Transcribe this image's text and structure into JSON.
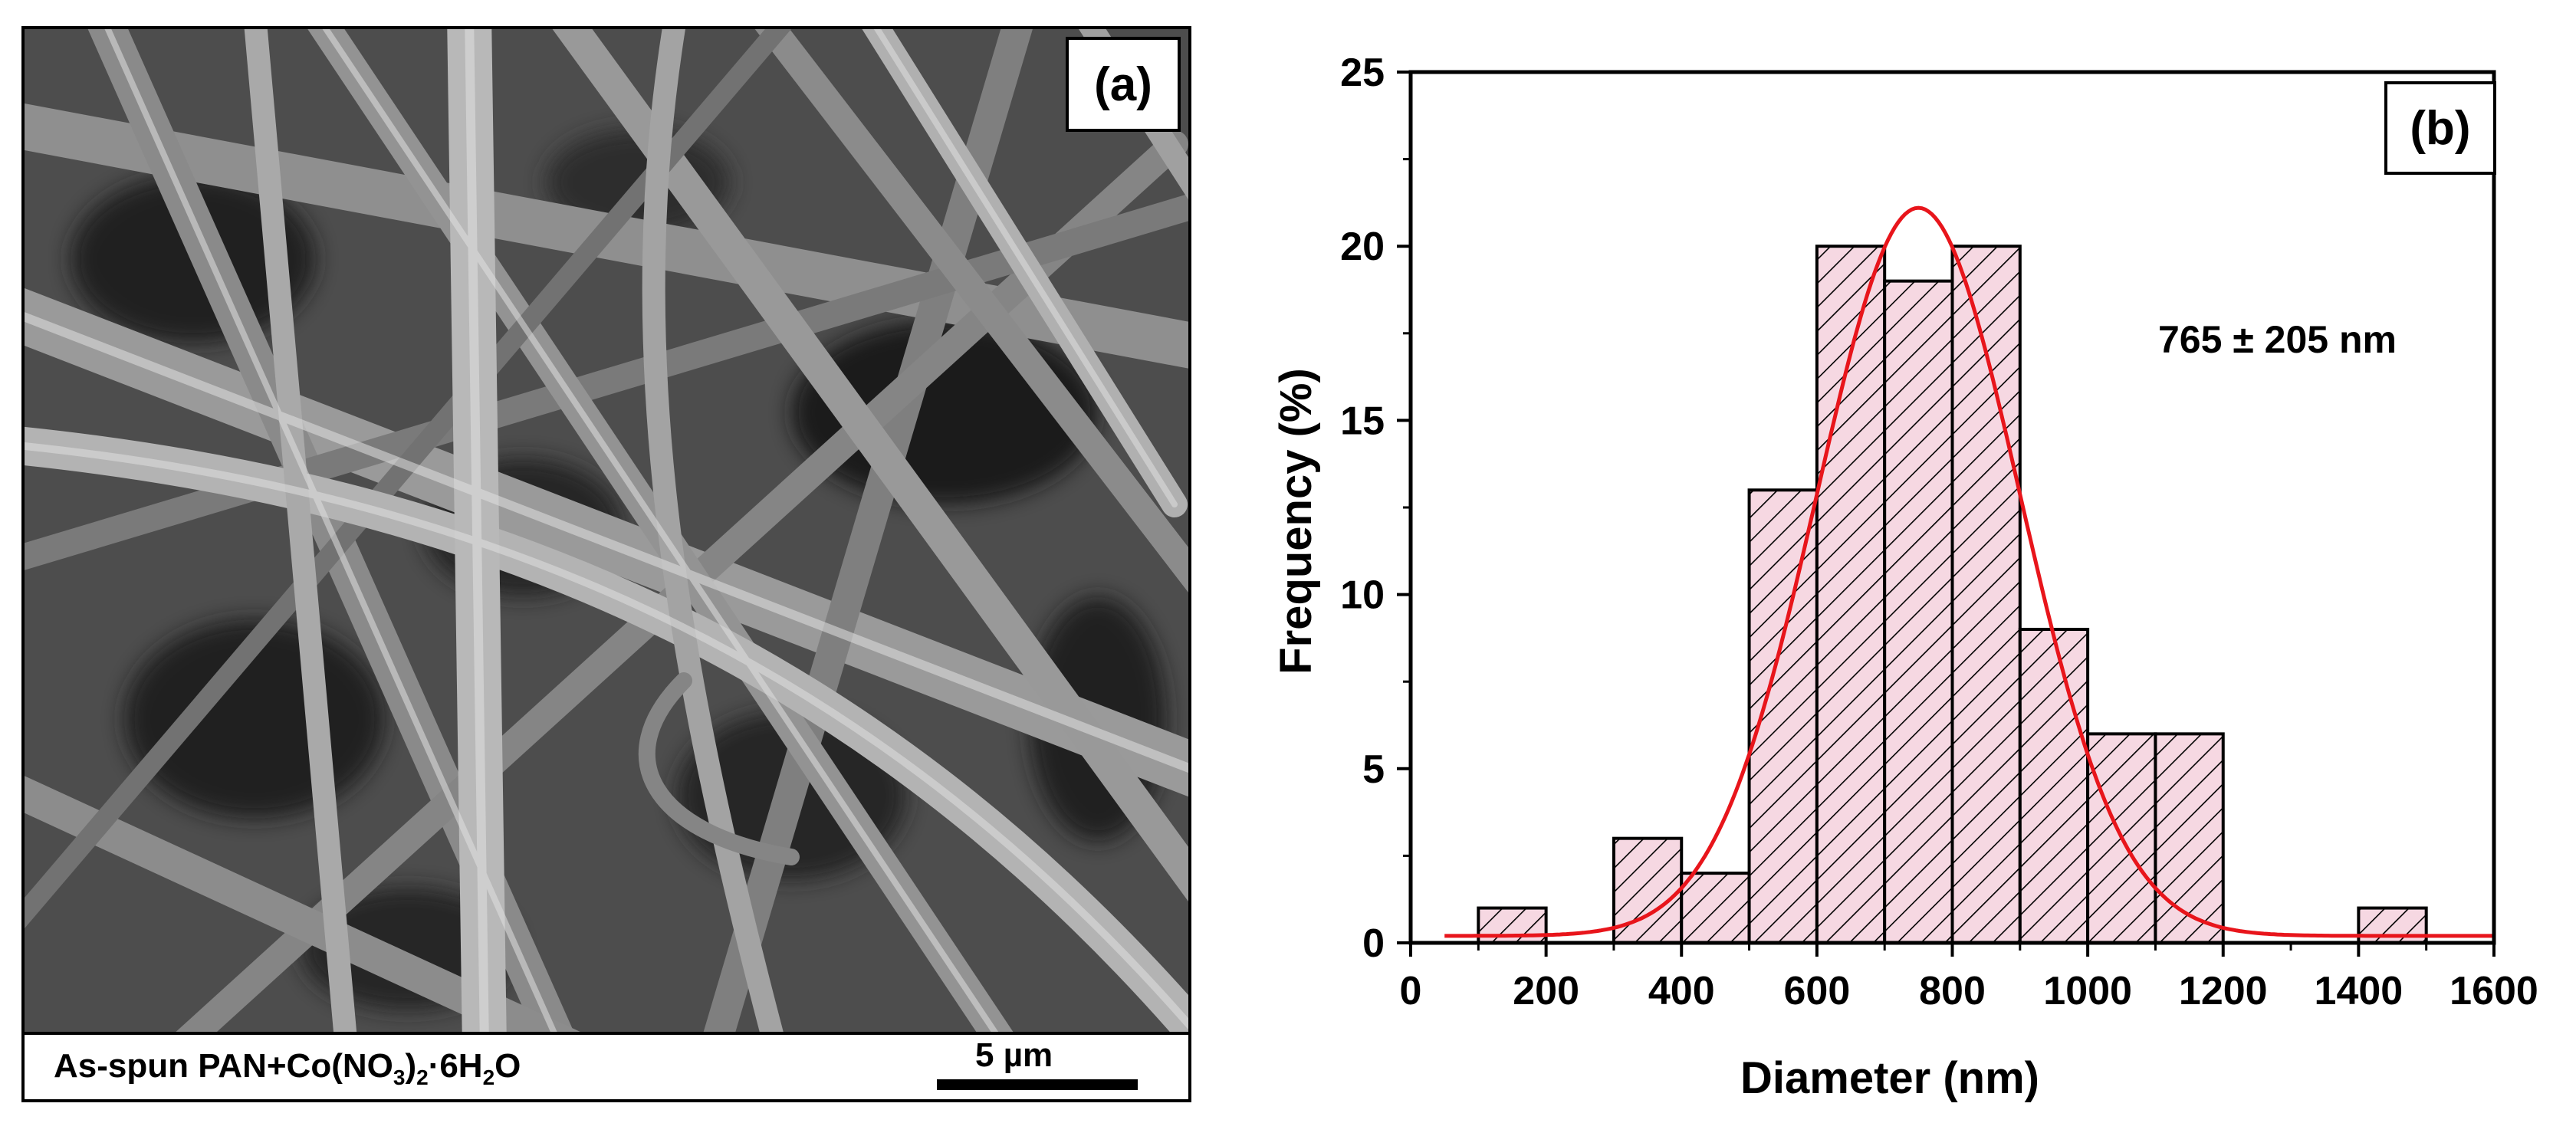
{
  "panel_a": {
    "tag": "(a)",
    "caption_prefix": "As-spun PAN+Co(NO",
    "caption_sub1": "3",
    "caption_mid": ")",
    "caption_sub2": "2",
    "caption_mid2": "·6H",
    "caption_sub3": "2",
    "caption_suffix": "O",
    "scale_label": "5 µm"
  },
  "chart_data": {
    "type": "bar",
    "tag": "(b)",
    "annotation": "765 ± 205 nm",
    "xlabel": "Diameter (nm)",
    "ylabel": "Frequency (%)",
    "xlim": [
      0,
      1600
    ],
    "ylim": [
      0,
      25
    ],
    "xticks": [
      0,
      200,
      400,
      600,
      800,
      1000,
      1200,
      1400,
      1600
    ],
    "yticks": [
      0,
      5,
      10,
      15,
      20,
      25
    ],
    "bin_width": 100,
    "bins": [
      {
        "start": 100,
        "value": 1
      },
      {
        "start": 300,
        "value": 3
      },
      {
        "start": 400,
        "value": 2
      },
      {
        "start": 500,
        "value": 13
      },
      {
        "start": 600,
        "value": 20
      },
      {
        "start": 700,
        "value": 19
      },
      {
        "start": 800,
        "value": 20
      },
      {
        "start": 900,
        "value": 9
      },
      {
        "start": 1000,
        "value": 6
      },
      {
        "start": 1100,
        "value": 6
      },
      {
        "start": 1400,
        "value": 1
      }
    ],
    "fit": {
      "type": "gaussian",
      "x_from": 50,
      "x_to": 1600,
      "mean": 750,
      "sigma": 150,
      "amplitude": 20.9,
      "offset": 0.2
    },
    "bar_fill": "#f6d8e2",
    "hatch_color": "#000000",
    "fit_color": "#e8151b"
  }
}
